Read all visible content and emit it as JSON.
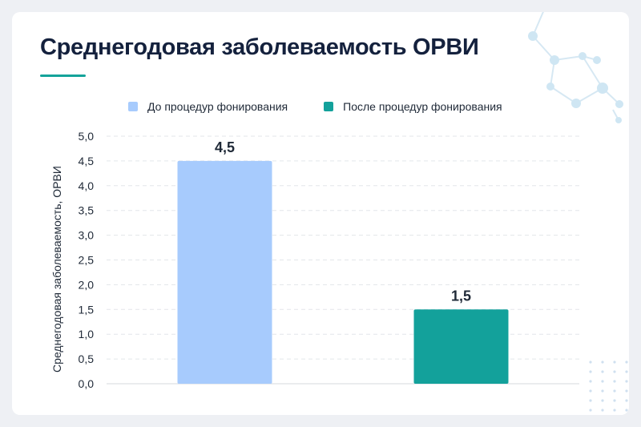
{
  "title": "Среднегодовая заболеваемость ОРВИ",
  "colors": {
    "title": "#14213d",
    "accent": "#14a39a",
    "bar_before": "#a7cbfd",
    "bar_after": "#13a19b",
    "grid": "#e3e6ea"
  },
  "chart_data": {
    "type": "bar",
    "ylabel": "Среднегодовая заболеваемость, ОРВИ",
    "ylim": [
      0,
      5
    ],
    "yticks": [
      "0,0",
      "0,5",
      "1,0",
      "1,5",
      "2,0",
      "2,5",
      "3,0",
      "3,5",
      "4,0",
      "4,5",
      "5,0"
    ],
    "grid": true,
    "legend_position": "top",
    "series": [
      {
        "name": "До процедур фонирования",
        "value": 4.5,
        "label": "4,5",
        "color": "#a7cbfd"
      },
      {
        "name": "После процедур фонирования",
        "value": 1.5,
        "label": "1,5",
        "color": "#13a19b"
      }
    ]
  }
}
